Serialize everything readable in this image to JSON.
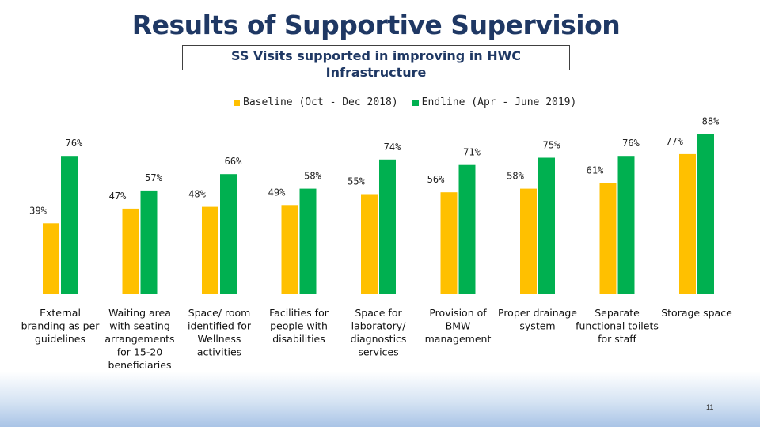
{
  "slide": {
    "title": "Results of Supportive Supervision",
    "page_number": "11"
  },
  "colors": {
    "baseline": "#ffc000",
    "endline": "#00b050",
    "title": "#1f3864"
  },
  "chart_data": {
    "type": "bar",
    "title": "SS Visits supported in improving in HWC Infrastructure",
    "categories": [
      [
        "External",
        "branding as per",
        "guidelines"
      ],
      [
        "Waiting area",
        "with seating",
        "arrangements",
        "for 15-20",
        "beneficiaries"
      ],
      [
        "Space/ room",
        "identified for",
        "Wellness",
        "activities"
      ],
      [
        "Facilities for",
        "people with",
        "disabilities"
      ],
      [
        "Space for",
        "laboratory/",
        "diagnostics",
        "services"
      ],
      [
        "Provision of",
        "BMW",
        "management"
      ],
      [
        "Proper drainage",
        "system"
      ],
      [
        "Separate",
        "functional toilets",
        "for staff"
      ],
      [
        "Storage space"
      ]
    ],
    "series": [
      {
        "name": "Baseline (Oct - Dec 2018)",
        "values": [
          39,
          47,
          48,
          49,
          55,
          56,
          58,
          61,
          77
        ]
      },
      {
        "name": "Endline (Apr - June 2019)",
        "values": [
          76,
          57,
          66,
          58,
          74,
          71,
          75,
          76,
          88
        ]
      }
    ],
    "ylim": [
      0,
      100
    ],
    "grid": false,
    "legend_position": "top"
  }
}
